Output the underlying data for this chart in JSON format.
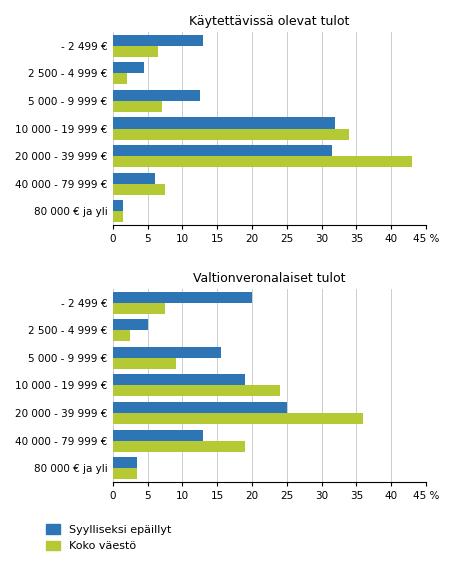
{
  "title_top": "Käytettävissä olevat tulot",
  "title_bottom": "Valtionveronalaiset tulot",
  "categories": [
    "- 2 499 €",
    "2 500 - 4 999 €",
    "5 000 - 9 999 €",
    "10 000 - 19 999 €",
    "20 000 - 39 999 €",
    "40 000 - 79 999 €",
    "80 000 € ja yli"
  ],
  "top_blue": [
    13,
    4.5,
    12.5,
    32,
    31.5,
    6,
    1.5
  ],
  "top_green": [
    6.5,
    2,
    7,
    34,
    43,
    7.5,
    1.5
  ],
  "bottom_blue": [
    20,
    5,
    15.5,
    19,
    25,
    13,
    3.5
  ],
  "bottom_green": [
    7.5,
    2.5,
    9,
    24,
    36,
    19,
    3.5
  ],
  "blue_color": "#2E75B6",
  "green_color": "#B5C934",
  "legend_blue": "Syylliseksi epäillyt",
  "legend_green": "Koko väestö",
  "xlim": [
    0,
    45
  ],
  "xticks": [
    0,
    5,
    10,
    15,
    20,
    25,
    30,
    35,
    40,
    45
  ],
  "xlabel_suffix": " %",
  "bg_color": "#ffffff",
  "grid_color": "#cccccc"
}
